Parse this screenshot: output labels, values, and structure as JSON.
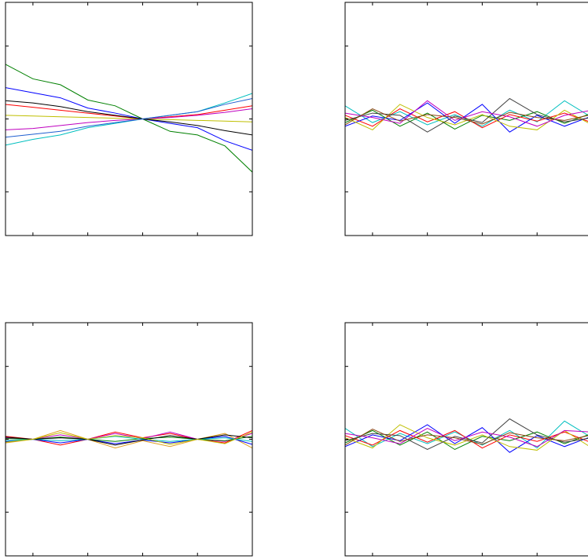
{
  "chart_data": [
    {
      "type": "line",
      "x": [
        0,
        1,
        2,
        3,
        4,
        5,
        6,
        7,
        8,
        9
      ],
      "xlim": [
        0,
        9
      ],
      "ylim": [
        -1.6,
        1.6
      ],
      "xticks": [
        1,
        3,
        5,
        7
      ],
      "yticks": [
        -1,
        0,
        1
      ],
      "series": [
        {
          "color": "#008000",
          "values": [
            0.75,
            0.55,
            0.47,
            0.26,
            0.18,
            0,
            -0.17,
            -0.22,
            -0.37,
            -0.73
          ]
        },
        {
          "color": "#0000ff",
          "values": [
            0.43,
            0.36,
            0.29,
            0.15,
            0.08,
            0,
            -0.06,
            -0.12,
            -0.3,
            -0.43
          ]
        },
        {
          "color": "#ff0000",
          "values": [
            0.2,
            0.16,
            0.12,
            0.08,
            0.04,
            0,
            0.03,
            0.06,
            0.12,
            0.18
          ]
        },
        {
          "color": "#00bfbf",
          "values": [
            -0.36,
            -0.28,
            -0.22,
            -0.12,
            -0.06,
            0,
            0.05,
            0.1,
            0.22,
            0.35
          ]
        },
        {
          "color": "#bf00bf",
          "values": [
            -0.15,
            -0.13,
            -0.09,
            -0.05,
            -0.02,
            0,
            0.02,
            0.05,
            0.09,
            0.14
          ]
        },
        {
          "color": "#bfbf00",
          "values": [
            0.05,
            0.04,
            0.03,
            0.02,
            0.01,
            0,
            -0.01,
            -0.02,
            -0.03,
            -0.04
          ]
        },
        {
          "color": "#000000",
          "values": [
            0.25,
            0.22,
            0.17,
            0.1,
            0.05,
            0,
            -0.04,
            -0.09,
            -0.16,
            -0.22
          ]
        },
        {
          "color": "#1f5fd0",
          "values": [
            -0.25,
            -0.21,
            -0.17,
            -0.1,
            -0.05,
            0,
            0.05,
            0.1,
            0.2,
            0.28
          ]
        }
      ]
    },
    {
      "type": "line",
      "x": [
        0,
        1,
        2,
        3,
        4,
        5,
        6,
        7,
        8,
        9
      ],
      "xlim": [
        0,
        9
      ],
      "ylim": [
        -1.6,
        1.6
      ],
      "xticks": [
        1,
        3,
        5,
        7
      ],
      "yticks": [
        -1,
        0,
        1
      ],
      "series": [
        {
          "color": "#00bfbf",
          "values": [
            0.18,
            -0.05,
            0.1,
            -0.08,
            0.06,
            -0.1,
            0.12,
            -0.04,
            0.25,
            0.02
          ]
        },
        {
          "color": "#008000",
          "values": [
            -0.05,
            0.12,
            -0.1,
            0.08,
            -0.14,
            0.05,
            -0.02,
            0.1,
            -0.06,
            0.08
          ]
        },
        {
          "color": "#ff0000",
          "values": [
            0.05,
            -0.1,
            0.14,
            -0.04,
            0.1,
            -0.12,
            0.06,
            -0.03,
            0.08,
            -0.05
          ]
        },
        {
          "color": "#0000ff",
          "values": [
            -0.1,
            0.04,
            -0.02,
            0.22,
            -0.06,
            0.2,
            -0.18,
            0.05,
            -0.1,
            0.04
          ]
        },
        {
          "color": "#bfbf00",
          "values": [
            0.02,
            -0.15,
            0.2,
            0.02,
            -0.08,
            0.06,
            -0.1,
            -0.15,
            0.12,
            -0.08
          ]
        },
        {
          "color": "#404040",
          "values": [
            -0.02,
            0.08,
            0.05,
            -0.18,
            0.04,
            -0.05,
            0.28,
            0.06,
            -0.04,
            0.02
          ]
        },
        {
          "color": "#bf00bf",
          "values": [
            0.08,
            0.02,
            -0.06,
            0.25,
            -0.02,
            0.1,
            0.03,
            -0.1,
            0.05,
            0.12
          ]
        },
        {
          "color": "#8b4513",
          "values": [
            -0.08,
            0.14,
            -0.03,
            0.06,
            0.02,
            -0.07,
            0.09,
            0.02,
            -0.02,
            0.06
          ]
        }
      ]
    },
    {
      "type": "line",
      "x": [
        0,
        1,
        2,
        3,
        4,
        5,
        6,
        7,
        8,
        9
      ],
      "xlim": [
        0,
        9
      ],
      "ylim": [
        -1.6,
        1.6
      ],
      "xticks": [
        1,
        3,
        5,
        7
      ],
      "yticks": [
        -1,
        0,
        1
      ],
      "series": [
        {
          "color": "#ff0000",
          "values": [
            0.04,
            0,
            -0.08,
            0,
            0.1,
            0.02,
            0.08,
            0,
            -0.05,
            0.12
          ]
        },
        {
          "color": "#e0a020",
          "values": [
            -0.05,
            0,
            0.12,
            0,
            -0.12,
            -0.02,
            -0.1,
            0,
            0.08,
            -0.12
          ]
        },
        {
          "color": "#bf00bf",
          "values": [
            0.02,
            0,
            0.06,
            0,
            0.08,
            0.01,
            0.1,
            0,
            -0.03,
            0.08
          ]
        },
        {
          "color": "#0000ff",
          "values": [
            -0.03,
            0,
            -0.05,
            0,
            -0.06,
            -0.01,
            -0.05,
            0,
            0.04,
            -0.07
          ]
        },
        {
          "color": "#008000",
          "values": [
            0.01,
            0,
            0.03,
            0,
            -0.03,
            0.01,
            0.03,
            0,
            -0.02,
            0.04
          ]
        },
        {
          "color": "#00bfbf",
          "values": [
            -0.02,
            0,
            -0.02,
            0,
            0.04,
            0,
            -0.03,
            0,
            0.02,
            -0.03
          ]
        },
        {
          "color": "#000000",
          "values": [
            0.03,
            0,
            0.02,
            0,
            -0.08,
            -0.01,
            0.05,
            0,
            0.06,
            0.02
          ]
        },
        {
          "color": "#bfbf00",
          "values": [
            -0.04,
            0,
            0.09,
            0,
            0.05,
            0.02,
            -0.07,
            0,
            -0.06,
            0.1
          ]
        }
      ]
    },
    {
      "type": "line",
      "x": [
        0,
        1,
        2,
        3,
        4,
        5,
        6,
        7,
        8,
        9
      ],
      "xlim": [
        0,
        9
      ],
      "ylim": [
        -1.6,
        1.6
      ],
      "xticks": [
        1,
        3,
        5,
        7
      ],
      "yticks": [
        -1,
        0,
        1
      ],
      "series": [
        {
          "color": "#00bfbf",
          "values": [
            0.15,
            -0.1,
            0.08,
            -0.06,
            0.1,
            -0.08,
            0.12,
            -0.12,
            0.25,
            0.02
          ]
        },
        {
          "color": "#008000",
          "values": [
            -0.05,
            0.12,
            -0.08,
            0.1,
            -0.14,
            0.04,
            -0.02,
            0.1,
            -0.06,
            0.08
          ]
        },
        {
          "color": "#ff0000",
          "values": [
            0.05,
            -0.08,
            0.12,
            -0.04,
            0.12,
            -0.12,
            0.06,
            -0.03,
            0.1,
            -0.05
          ]
        },
        {
          "color": "#0000ff",
          "values": [
            -0.1,
            0.06,
            -0.02,
            0.2,
            -0.06,
            0.16,
            -0.18,
            0.05,
            -0.1,
            0.04
          ]
        },
        {
          "color": "#bfbf00",
          "values": [
            0.02,
            -0.12,
            0.2,
            0.02,
            -0.08,
            0.06,
            -0.1,
            -0.15,
            0.12,
            -0.12
          ]
        },
        {
          "color": "#404040",
          "values": [
            -0.02,
            0.08,
            0.05,
            -0.14,
            0.04,
            -0.05,
            0.28,
            0.06,
            -0.04,
            0.02
          ]
        },
        {
          "color": "#bf00bf",
          "values": [
            0.08,
            0.02,
            -0.06,
            0.15,
            -0.02,
            0.1,
            0.03,
            -0.1,
            0.12,
            0.1
          ]
        },
        {
          "color": "#8b4513",
          "values": [
            -0.08,
            0.14,
            -0.03,
            0.06,
            0.02,
            -0.07,
            0.09,
            0.02,
            -0.02,
            0.06
          ]
        }
      ]
    }
  ]
}
